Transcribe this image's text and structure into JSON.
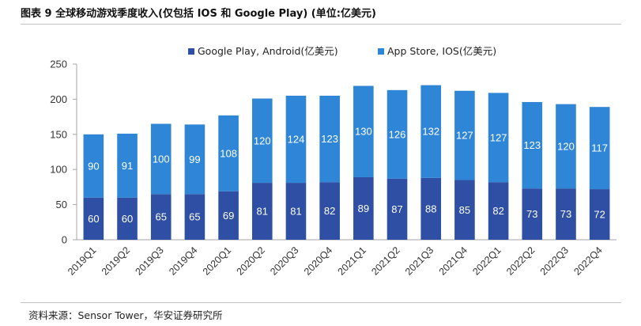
{
  "header": {
    "title": "图表 9 全球移动游戏季度收入(仅包括 IOS 和 Google Play) (单位:亿美元)"
  },
  "footer": {
    "source": "资料来源：Sensor Tower，华安证券研究所"
  },
  "colors": {
    "series1": "#2e4fa3",
    "series2": "#2f86d6",
    "axis": "#a6a6a6"
  },
  "chart_data": {
    "type": "bar",
    "stacked": true,
    "title": "全球移动游戏季度收入(仅包括 IOS 和 Google Play) (单位:亿美元)",
    "xlabel": "",
    "ylabel": "",
    "ylim": [
      0,
      250
    ],
    "yticks": [
      0,
      50,
      100,
      150,
      200,
      250
    ],
    "grid": false,
    "legend_position": "top",
    "categories": [
      "2019Q1",
      "2019Q2",
      "2019Q3",
      "2019Q4",
      "2020Q1",
      "2020Q2",
      "2020Q3",
      "2020Q4",
      "2021Q1",
      "2021Q2",
      "2021Q3",
      "2021Q4",
      "2022Q1",
      "2022Q2",
      "2022Q3",
      "2022Q4"
    ],
    "series": [
      {
        "name": "Google Play, Android(亿美元)",
        "values": [
          60,
          60,
          65,
          65,
          69,
          81,
          81,
          82,
          89,
          87,
          88,
          85,
          82,
          73,
          73,
          72
        ]
      },
      {
        "name": "App Store, IOS(亿美元)",
        "values": [
          90,
          91,
          100,
          99,
          108,
          120,
          124,
          123,
          130,
          126,
          132,
          127,
          127,
          123,
          120,
          117
        ]
      }
    ]
  }
}
